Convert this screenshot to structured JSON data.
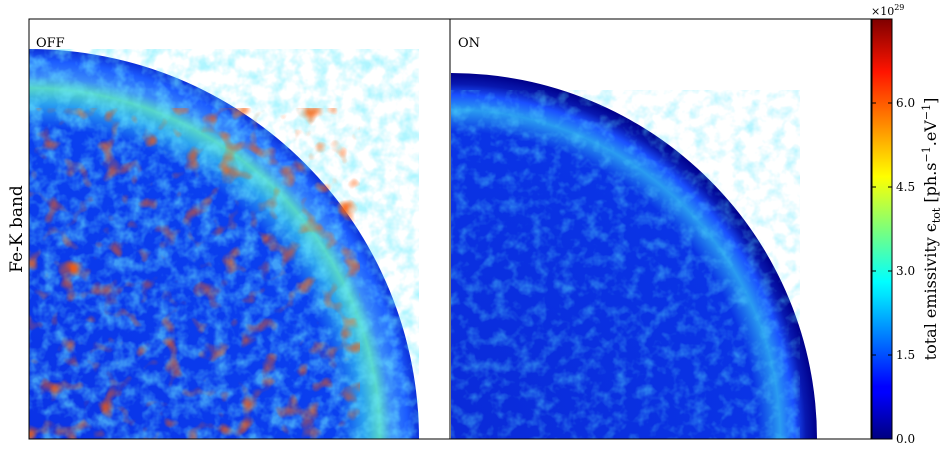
{
  "chart_data": {
    "type": "heatmap",
    "row_label": "Fe-K band",
    "panels": [
      {
        "label": "OFF",
        "rim_intensity": 0.85,
        "interior_intensity": 0.35,
        "limb_intensity": 0.12
      },
      {
        "label": "ON",
        "rim_intensity": 0.55,
        "interior_intensity": 0.28,
        "limb_intensity": 0.05
      }
    ],
    "colorbar": {
      "label": "total emissivity   ϵ",
      "label_subscript": "tot",
      "units": "[ph.s",
      "unit_exp1": "−1",
      "unit_mid": ".eV",
      "unit_exp2": "−1",
      "unit_end": "]",
      "multiplier_base": "×10",
      "multiplier_exp": "29",
      "range": [
        0,
        7.5
      ],
      "ticks": [
        {
          "value": 0.0,
          "label": "0.0"
        },
        {
          "value": 1.5,
          "label": "1.5"
        },
        {
          "value": 3.0,
          "label": "3.0"
        },
        {
          "value": 4.5,
          "label": "4.5"
        },
        {
          "value": 6.0,
          "label": "6.0"
        }
      ],
      "colormap": "jet"
    }
  }
}
